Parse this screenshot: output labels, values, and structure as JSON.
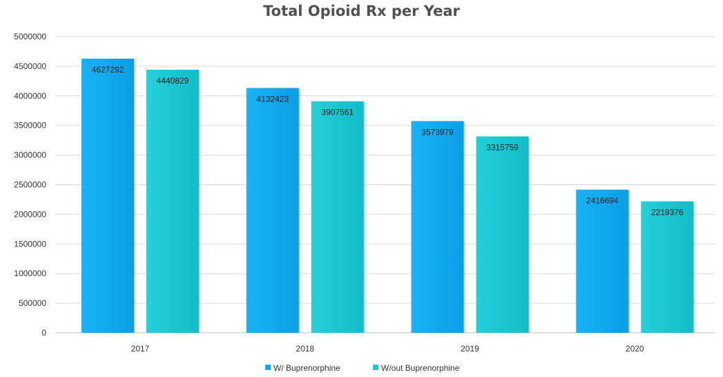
{
  "chart_data": {
    "type": "bar",
    "title": "Total Opioid Rx per Year",
    "xlabel": "",
    "ylabel": "",
    "categories": [
      "2017",
      "2018",
      "2019",
      "2020"
    ],
    "series": [
      {
        "name": "W/ Buprenorphine",
        "values": [
          4627292,
          4132423,
          3573979,
          2416694
        ],
        "color": "#0fa9ef"
      },
      {
        "name": "W/out Buprenorphine",
        "values": [
          4440829,
          3907561,
          3315759,
          2219376
        ],
        "color": "#1ac8d2"
      }
    ],
    "ylim": [
      0,
      5000000
    ],
    "yticks": [
      0,
      500000,
      1000000,
      1500000,
      2000000,
      2500000,
      3000000,
      3500000,
      4000000,
      4500000,
      5000000
    ],
    "grid": true,
    "legend_position": "bottom"
  }
}
